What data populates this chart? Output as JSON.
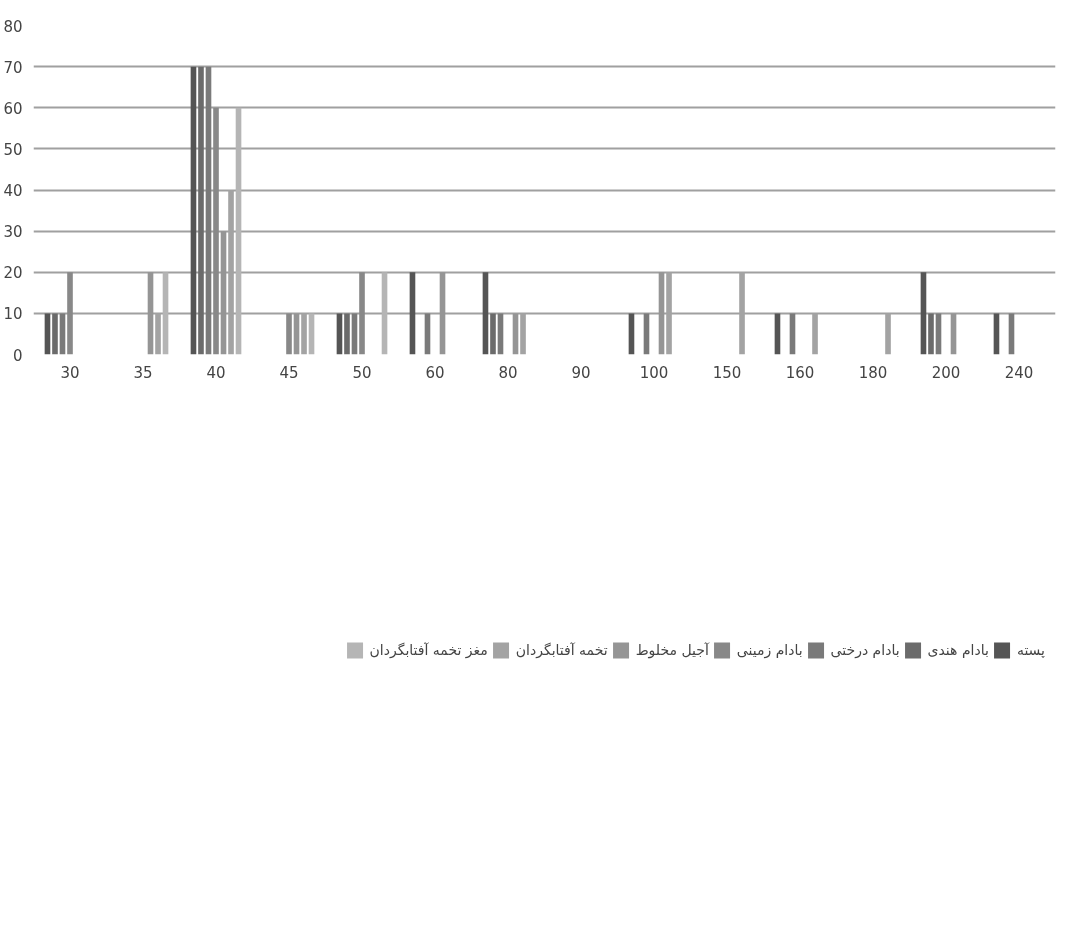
{
  "chart_data": {
    "type": "bar",
    "categories": [
      "30",
      "35",
      "40",
      "45",
      "50",
      "60",
      "80",
      "90",
      "100",
      "150",
      "160",
      "180",
      "200",
      "240"
    ],
    "series": [
      {
        "name": "پسته",
        "color": "#555555",
        "values": [
          10,
          0,
          70,
          0,
          10,
          20,
          20,
          0,
          10,
          0,
          10,
          0,
          20,
          10
        ]
      },
      {
        "name": "بادام هندی",
        "color": "#6b6b6b",
        "values": [
          10,
          0,
          70,
          0,
          10,
          0,
          10,
          0,
          0,
          0,
          0,
          0,
          10,
          0
        ]
      },
      {
        "name": "بادام درختی",
        "color": "#7a7a7a",
        "values": [
          10,
          0,
          70,
          0,
          10,
          10,
          10,
          0,
          10,
          0,
          10,
          0,
          10,
          10
        ]
      },
      {
        "name": "بادام زمینی",
        "color": "#888888",
        "values": [
          20,
          0,
          60,
          10,
          20,
          0,
          0,
          0,
          0,
          0,
          0,
          0,
          0,
          0
        ]
      },
      {
        "name": "آجیل مخلوط",
        "color": "#959595",
        "values": [
          0,
          20,
          30,
          10,
          0,
          20,
          10,
          0,
          20,
          0,
          0,
          0,
          10,
          0
        ]
      },
      {
        "name": "تخمه آفتابگردان",
        "color": "#a3a3a3",
        "values": [
          0,
          10,
          40,
          10,
          0,
          0,
          10,
          0,
          20,
          20,
          10,
          10,
          0,
          0
        ]
      },
      {
        "name": "مغز تخمه آفتابگردان",
        "color": "#b5b5b5",
        "values": [
          0,
          20,
          60,
          10,
          20,
          0,
          0,
          0,
          0,
          0,
          0,
          0,
          0,
          0
        ]
      }
    ],
    "ylim": [
      0,
      80
    ],
    "yticks": [
      0,
      10,
      20,
      30,
      40,
      50,
      60,
      70,
      80
    ],
    "grid": "y",
    "legend": "bottom"
  }
}
